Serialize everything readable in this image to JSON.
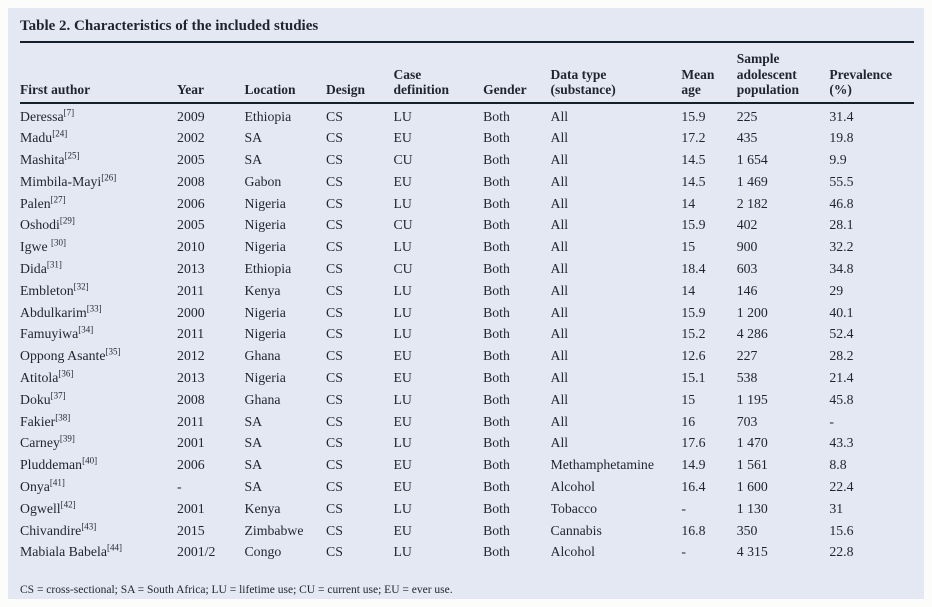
{
  "colors": {
    "panel_background": "#e4e8f3",
    "page_background": "#fcfcfa",
    "text": "#1f2530",
    "rule": "#171e2b"
  },
  "table": {
    "title": "Table 2. Characteristics of the included studies",
    "columns": [
      "First author",
      "Year",
      "Location",
      "Design",
      "Case\ndefinition",
      "Gender",
      "Data type\n(substance)",
      "Mean\nage",
      "Sample\nadolescent\npopulation",
      "Prevalence\n(%)"
    ],
    "rows": [
      {
        "author": "Deressa",
        "ref": "[7]",
        "year": "2009",
        "location": "Ethiopia",
        "design": "CS",
        "case_definition": "LU",
        "gender": "Both",
        "data_type": "All",
        "mean_age": "15.9",
        "population": "225",
        "prevalence": "31.4"
      },
      {
        "author": "Madu",
        "ref": "[24]",
        "year": "2002",
        "location": "SA",
        "design": "CS",
        "case_definition": "EU",
        "gender": "Both",
        "data_type": "All",
        "mean_age": "17.2",
        "population": "435",
        "prevalence": "19.8"
      },
      {
        "author": "Mashita",
        "ref": "[25]",
        "year": "2005",
        "location": "SA",
        "design": "CS",
        "case_definition": "CU",
        "gender": "Both",
        "data_type": "All",
        "mean_age": "14.5",
        "population": "1 654",
        "prevalence": "9.9"
      },
      {
        "author": "Mimbila-Mayi",
        "ref": "[26]",
        "year": "2008",
        "location": "Gabon",
        "design": "CS",
        "case_definition": "EU",
        "gender": "Both",
        "data_type": "All",
        "mean_age": "14.5",
        "population": "1 469",
        "prevalence": "55.5"
      },
      {
        "author": "Palen",
        "ref": "[27]",
        "year": "2006",
        "location": "Nigeria",
        "design": "CS",
        "case_definition": "LU",
        "gender": "Both",
        "data_type": "All",
        "mean_age": "14",
        "population": "2 182",
        "prevalence": "46.8"
      },
      {
        "author": "Oshodi",
        "ref": "[29]",
        "year": "2005",
        "location": "Nigeria",
        "design": "CS",
        "case_definition": "CU",
        "gender": "Both",
        "data_type": "All",
        "mean_age": "15.9",
        "population": "402",
        "prevalence": "28.1"
      },
      {
        "author": "Igwe ",
        "ref": "[30]",
        "year": "2010",
        "location": "Nigeria",
        "design": "CS",
        "case_definition": "LU",
        "gender": "Both",
        "data_type": "All",
        "mean_age": "15",
        "population": "900",
        "prevalence": "32.2"
      },
      {
        "author": "Dida",
        "ref": "[31]",
        "year": "2013",
        "location": "Ethiopia",
        "design": "CS",
        "case_definition": "CU",
        "gender": "Both",
        "data_type": "All",
        "mean_age": "18.4",
        "population": "603",
        "prevalence": "34.8"
      },
      {
        "author": "Embleton",
        "ref": "[32]",
        "year": "2011",
        "location": "Kenya",
        "design": "CS",
        "case_definition": "LU",
        "gender": "Both",
        "data_type": "All",
        "mean_age": "14",
        "population": "146",
        "prevalence": "29"
      },
      {
        "author": "Abdulkarim",
        "ref": "[33]",
        "year": "2000",
        "location": "Nigeria",
        "design": "CS",
        "case_definition": "LU",
        "gender": "Both",
        "data_type": "All",
        "mean_age": "15.9",
        "population": "1 200",
        "prevalence": "40.1"
      },
      {
        "author": "Famuyiwa",
        "ref": "[34]",
        "year": "2011",
        "location": "Nigeria",
        "design": "CS",
        "case_definition": "LU",
        "gender": "Both",
        "data_type": "All",
        "mean_age": "15.2",
        "population": "4 286",
        "prevalence": "52.4"
      },
      {
        "author": "Oppong Asante",
        "ref": "[35]",
        "year": "2012",
        "location": "Ghana",
        "design": "CS",
        "case_definition": "EU",
        "gender": "Both",
        "data_type": "All",
        "mean_age": "12.6",
        "population": "227",
        "prevalence": "28.2"
      },
      {
        "author": "Atitola",
        "ref": "[36]",
        "year": "2013",
        "location": "Nigeria",
        "design": "CS",
        "case_definition": "EU",
        "gender": "Both",
        "data_type": "All",
        "mean_age": "15.1",
        "population": "538",
        "prevalence": "21.4"
      },
      {
        "author": "Doku",
        "ref": "[37]",
        "year": "2008",
        "location": "Ghana",
        "design": "CS",
        "case_definition": "LU",
        "gender": "Both",
        "data_type": "All",
        "mean_age": "15",
        "population": "1 195",
        "prevalence": "45.8"
      },
      {
        "author": "Fakier",
        "ref": "[38]",
        "year": "2011",
        "location": "SA",
        "design": "CS",
        "case_definition": "EU",
        "gender": "Both",
        "data_type": "All",
        "mean_age": "16",
        "population": "703",
        "prevalence": "-"
      },
      {
        "author": "Carney",
        "ref": "[39]",
        "year": "2001",
        "location": "SA",
        "design": "CS",
        "case_definition": "LU",
        "gender": "Both",
        "data_type": "All",
        "mean_age": "17.6",
        "population": "1 470",
        "prevalence": "43.3"
      },
      {
        "author": "Pluddeman",
        "ref": "[40]",
        "year": "2006",
        "location": "SA",
        "design": "CS",
        "case_definition": "EU",
        "gender": "Both",
        "data_type": "Methamphetamine",
        "mean_age": "14.9",
        "population": "1 561",
        "prevalence": "8.8"
      },
      {
        "author": "Onya",
        "ref": "[41]",
        "year": "-",
        "location": "SA",
        "design": "CS",
        "case_definition": "EU",
        "gender": "Both",
        "data_type": "Alcohol",
        "mean_age": "16.4",
        "population": "1 600",
        "prevalence": "22.4"
      },
      {
        "author": "Ogwell",
        "ref": "[42]",
        "year": "2001",
        "location": "Kenya",
        "design": "CS",
        "case_definition": "LU",
        "gender": "Both",
        "data_type": "Tobacco",
        "mean_age": "-",
        "population": "1 130",
        "prevalence": "31"
      },
      {
        "author": "Chivandire",
        "ref": "[43]",
        "year": "2015",
        "location": "Zimbabwe",
        "design": "CS",
        "case_definition": "EU",
        "gender": "Both",
        "data_type": "Cannabis",
        "mean_age": "16.8",
        "population": "350",
        "prevalence": "15.6"
      },
      {
        "author": "Mabiala Babela",
        "ref": "[44]",
        "year": "2001/2",
        "location": "Congo",
        "design": "CS",
        "case_definition": "LU",
        "gender": "Both",
        "data_type": "Alcohol",
        "mean_age": "-",
        "population": "4 315",
        "prevalence": "22.8"
      }
    ],
    "footnote": "CS = cross-sectional; SA = South Africa; LU = lifetime use; CU = current use; EU = ever use."
  }
}
